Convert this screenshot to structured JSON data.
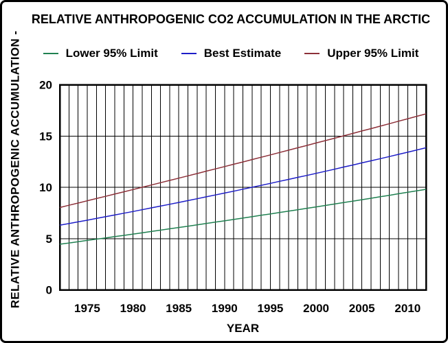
{
  "window": {
    "background": "#ffffff",
    "frame_border_color": "#000000",
    "gridline_color": "#000000",
    "plot_border_color": "#000000"
  },
  "chart_data": {
    "type": "line",
    "title": "RELATIVE ANTHROPOGENIC CO2 ACCUMULATION IN THE ARCTIC",
    "xlabel": "YEAR",
    "ylabel": "RELATIVE ANTHROPOGENIC ACCUMULATION -",
    "xlim": [
      1972,
      2012
    ],
    "ylim": [
      0,
      20
    ],
    "x_ticks": [
      1975,
      1980,
      1985,
      1990,
      1995,
      2000,
      2005,
      2010
    ],
    "y_ticks": [
      0,
      5,
      10,
      15,
      20
    ],
    "grid": "vertical every 1 year, horizontal every 5 units",
    "legend_position": "top",
    "x": [
      1972,
      1973,
      1974,
      1975,
      1976,
      1977,
      1978,
      1979,
      1980,
      1981,
      1982,
      1983,
      1984,
      1985,
      1986,
      1987,
      1988,
      1989,
      1990,
      1991,
      1992,
      1993,
      1994,
      1995,
      1996,
      1997,
      1998,
      1999,
      2000,
      2001,
      2002,
      2003,
      2004,
      2005,
      2006,
      2007,
      2008,
      2009,
      2010,
      2011,
      2012
    ],
    "series": [
      {
        "name": "Lower 95% Limit",
        "color": "#1f8050",
        "values": [
          4.45,
          4.57,
          4.69,
          4.82,
          4.94,
          5.06,
          5.19,
          5.31,
          5.44,
          5.56,
          5.69,
          5.82,
          5.95,
          6.08,
          6.21,
          6.34,
          6.47,
          6.6,
          6.73,
          6.86,
          7.0,
          7.13,
          7.27,
          7.4,
          7.54,
          7.67,
          7.81,
          7.95,
          8.09,
          8.23,
          8.37,
          8.51,
          8.65,
          8.79,
          8.93,
          9.08,
          9.22,
          9.37,
          9.51,
          9.66,
          9.8
        ]
      },
      {
        "name": "Best Estimate",
        "color": "#1d1dc8",
        "values": [
          6.3,
          6.46,
          6.63,
          6.79,
          6.96,
          7.13,
          7.3,
          7.47,
          7.64,
          7.81,
          7.99,
          8.17,
          8.34,
          8.52,
          8.7,
          8.88,
          9.07,
          9.25,
          9.44,
          9.62,
          9.81,
          10.0,
          10.19,
          10.38,
          10.58,
          10.77,
          10.97,
          11.16,
          11.36,
          11.56,
          11.76,
          11.97,
          12.17,
          12.38,
          12.58,
          12.79,
          13.0,
          13.21,
          13.42,
          13.64,
          13.85
        ]
      },
      {
        "name": "Upper 95% Limit",
        "color": "#8c2f38",
        "values": [
          8.03,
          8.25,
          8.46,
          8.68,
          8.9,
          9.12,
          9.34,
          9.56,
          9.78,
          10.0,
          10.22,
          10.45,
          10.67,
          10.89,
          11.12,
          11.34,
          11.57,
          11.79,
          12.02,
          12.25,
          12.47,
          12.7,
          12.93,
          13.16,
          13.39,
          13.62,
          13.85,
          14.08,
          14.32,
          14.55,
          14.78,
          15.02,
          15.25,
          15.49,
          15.72,
          15.96,
          16.2,
          16.44,
          16.68,
          16.92,
          17.16
        ]
      }
    ]
  }
}
